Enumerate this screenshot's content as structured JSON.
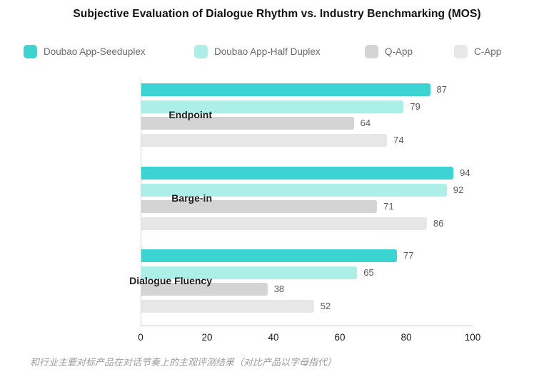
{
  "title": "Subjective Evaluation of Dialogue Rhythm vs. Industry Benchmarking (MOS)",
  "caption": "和行业主要对标产品在对话节奏上的主观评测结果（对比产品以字母指代）",
  "colors": {
    "seeduplex_teal": "#3CD3D3",
    "half_duplex_light_teal": "#ACEFE9",
    "q_app_gray": "#D4D4D4",
    "c_app_light_gray": "#E7E7E7",
    "value_label": "#595959",
    "legend_text": "#6B6B6B"
  },
  "legend": {
    "items": [
      {
        "label": "Doubao App-Seeduplex",
        "color": "#3CD3D3"
      },
      {
        "label": "Doubao App-Half Duplex",
        "color": "#ACEFE9"
      },
      {
        "label": "Q-App",
        "color": "#D4D4D4"
      },
      {
        "label": "C-App",
        "color": "#E7E7E7"
      }
    ]
  },
  "chart_data": {
    "type": "bar",
    "orientation": "horizontal",
    "title": "Subjective Evaluation of Dialogue Rhythm vs. Industry Benchmarking (MOS)",
    "categories": [
      "Endpoint",
      "Barge-in",
      "Dialogue Fluency"
    ],
    "series": [
      {
        "name": "Doubao App-Seeduplex",
        "color": "#3CD3D3",
        "values": [
          87,
          94,
          77
        ]
      },
      {
        "name": "Doubao App-Half Duplex",
        "color": "#ACEFE9",
        "values": [
          79,
          92,
          65
        ]
      },
      {
        "name": "Q-App",
        "color": "#D4D4D4",
        "values": [
          64,
          71,
          38
        ]
      },
      {
        "name": "C-App",
        "color": "#E7E7E7",
        "values": [
          74,
          86,
          52
        ]
      }
    ],
    "value_labels_shown": true,
    "xlabel": "",
    "ylabel": "",
    "xlim": [
      0,
      100
    ],
    "x_ticks": [
      0,
      20,
      40,
      60,
      80,
      100
    ],
    "grid": false,
    "legend_position": "top"
  }
}
